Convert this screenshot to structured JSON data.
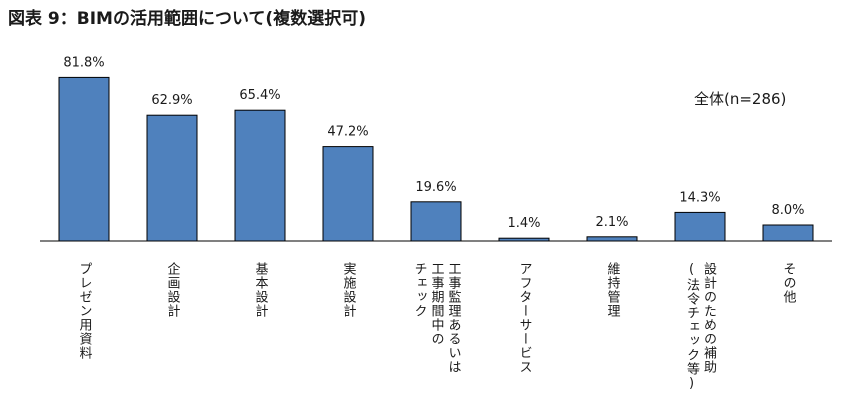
{
  "chart_data": {
    "type": "bar",
    "title": "図表 9：BIMの活用範囲について(複数選択可)",
    "note": "全体(n=286)",
    "unit": "%",
    "categories": [
      [
        "プレゼン用資料"
      ],
      [
        "企画設計"
      ],
      [
        "基本設計"
      ],
      [
        "実施設計"
      ],
      [
        "工事監理あるいは",
        "工事期間中の",
        "チェック"
      ],
      [
        "アフターサービス"
      ],
      [
        "維持管理"
      ],
      [
        "設計のための補助",
        "(法令チェック等)"
      ],
      [
        "その他"
      ]
    ],
    "values": [
      81.8,
      62.9,
      65.4,
      47.2,
      19.6,
      1.4,
      2.1,
      14.3,
      8.0
    ],
    "value_labels": [
      "81.8%",
      "62.9%",
      "65.4%",
      "47.2%",
      "19.6%",
      "1.4%",
      "2.1%",
      "14.3%",
      "8.0%"
    ],
    "ylim": [
      0,
      100
    ],
    "bar_color": "#4f81bd",
    "bar_edge_color": "#000000",
    "grid": false
  }
}
